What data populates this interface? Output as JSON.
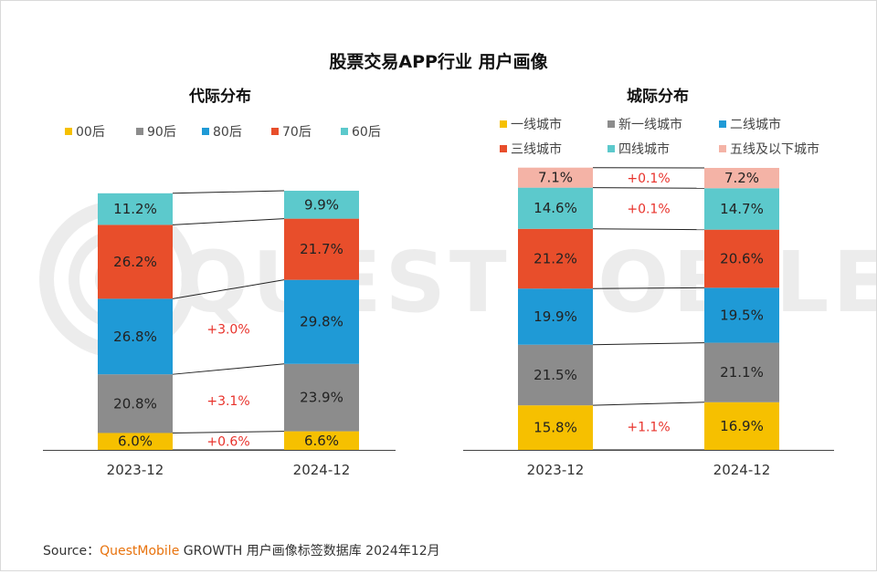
{
  "page": {
    "title": "股票交易APP行业 用户画像",
    "watermark": "QUESTMOBILE"
  },
  "source": {
    "prefix": "Source：",
    "brand": "QuestMobile",
    "rest": "GROWTH 用户画像标签数据库 2024年12月"
  },
  "colors": {
    "00后": "#f6c000",
    "90后": "#8c8c8c",
    "80后": "#1f9ad6",
    "70后": "#e84e2b",
    "60后": "#5cc9cc",
    "一线城市": "#f6c000",
    "新一线城市": "#8c8c8c",
    "二线城市": "#1f9ad6",
    "三线城市": "#e84e2b",
    "四线城市": "#5cc9cc",
    "五线及以下城市": "#f4b3a6",
    "delta": "#e8322b"
  },
  "chart_data": [
    {
      "type": "bar",
      "stacked": true,
      "title": "代际分布",
      "categories": [
        "2023-12",
        "2024-12"
      ],
      "series": [
        {
          "name": "00后",
          "values": [
            6.0,
            6.6
          ]
        },
        {
          "name": "90后",
          "values": [
            20.8,
            23.9
          ]
        },
        {
          "name": "80后",
          "values": [
            26.8,
            29.8
          ]
        },
        {
          "name": "70后",
          "values": [
            26.2,
            21.7
          ]
        },
        {
          "name": "60后",
          "values": [
            11.2,
            9.9
          ]
        }
      ],
      "value_labels": [
        [
          "6.0%",
          "20.8%",
          "26.8%",
          "26.2%",
          "11.2%"
        ],
        [
          "6.6%",
          "23.9%",
          "29.8%",
          "21.7%",
          "9.9%"
        ]
      ],
      "annotations": [
        {
          "series": "00后",
          "text": "+0.6%"
        },
        {
          "series": "90后",
          "text": "+3.1%"
        },
        {
          "series": "80后",
          "text": "+3.0%"
        }
      ],
      "legend": [
        "00后",
        "90后",
        "80后",
        "70后",
        "60后"
      ],
      "legend_position": "top"
    },
    {
      "type": "bar",
      "stacked": true,
      "title": "城际分布",
      "categories": [
        "2023-12",
        "2024-12"
      ],
      "series": [
        {
          "name": "一线城市",
          "values": [
            15.8,
            16.9
          ]
        },
        {
          "name": "新一线城市",
          "values": [
            21.5,
            21.1
          ]
        },
        {
          "name": "二线城市",
          "values": [
            19.9,
            19.5
          ]
        },
        {
          "name": "三线城市",
          "values": [
            21.2,
            20.6
          ]
        },
        {
          "name": "四线城市",
          "values": [
            14.6,
            14.7
          ]
        },
        {
          "name": "五线及以下城市",
          "values": [
            7.1,
            7.2
          ]
        }
      ],
      "value_labels": [
        [
          "15.8%",
          "21.5%",
          "19.9%",
          "21.2%",
          "14.6%",
          "7.1%"
        ],
        [
          "16.9%",
          "21.1%",
          "19.5%",
          "20.6%",
          "14.7%",
          "7.2%"
        ]
      ],
      "annotations": [
        {
          "series": "一线城市",
          "text": "+1.1%"
        },
        {
          "series": "四线城市",
          "text": "+0.1%"
        },
        {
          "series": "五线及以下城市",
          "text": "+0.1%"
        }
      ],
      "legend": [
        "一线城市",
        "新一线城市",
        "二线城市",
        "三线城市",
        "四线城市",
        "五线及以下城市"
      ],
      "legend_position": "top"
    }
  ]
}
